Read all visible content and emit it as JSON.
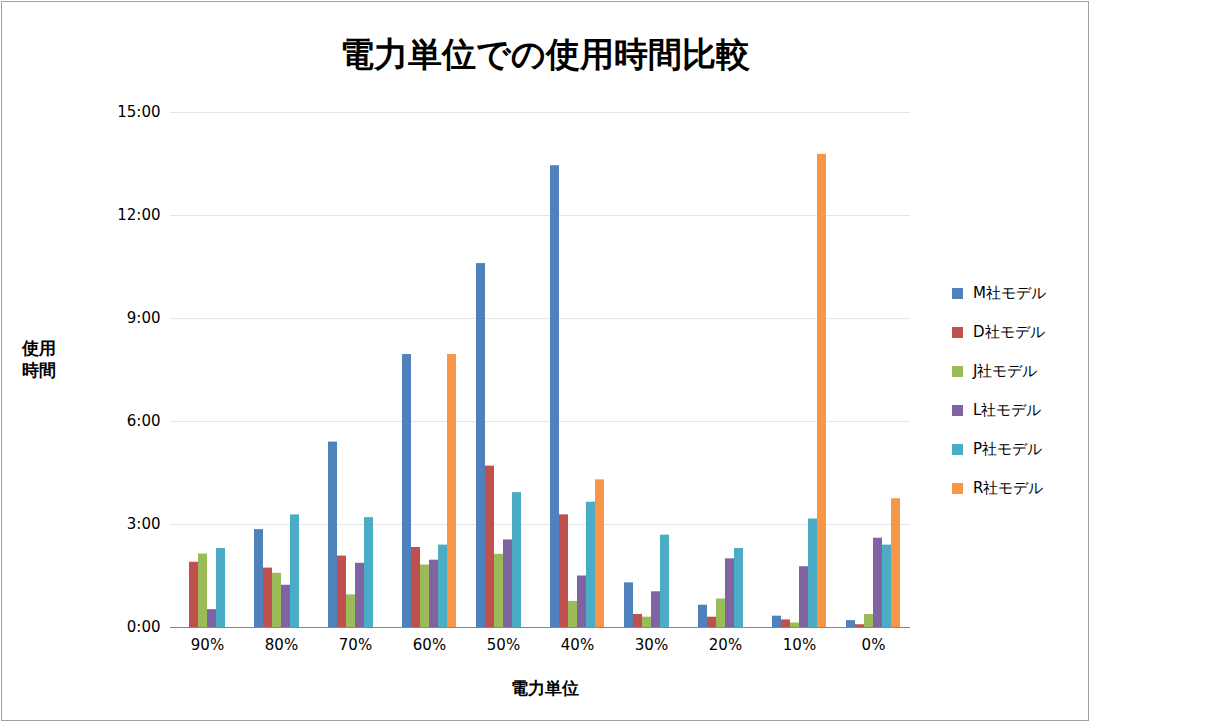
{
  "chart_data": {
    "type": "bar",
    "title": "電力単位での使用時間比較",
    "x_label": "電力単位",
    "y_label": "使用\n時間",
    "categories": [
      "90%",
      "80%",
      "70%",
      "60%",
      "50%",
      "40%",
      "30%",
      "20%",
      "10%",
      "0%"
    ],
    "series": [
      {
        "name": "M社モデル",
        "color": "#4F81BD",
        "values": [
          null,
          2.85,
          5.4,
          7.95,
          10.6,
          13.45,
          1.3,
          0.65,
          0.33,
          0.2
        ]
      },
      {
        "name": "D社モデル",
        "color": "#C0504D",
        "values": [
          1.9,
          1.73,
          2.08,
          2.33,
          4.7,
          3.28,
          0.38,
          0.3,
          0.22,
          0.08
        ]
      },
      {
        "name": "J社モデル",
        "color": "#9BBB59",
        "values": [
          2.14,
          1.58,
          0.95,
          1.82,
          2.13,
          0.76,
          0.3,
          0.83,
          0.13,
          0.38
        ]
      },
      {
        "name": "L社モデル",
        "color": "#8064A2",
        "values": [
          0.52,
          1.23,
          1.87,
          1.96,
          2.55,
          1.5,
          1.04,
          2.0,
          1.77,
          2.6
        ]
      },
      {
        "name": "P社モデル",
        "color": "#4BACC6",
        "values": [
          2.3,
          3.28,
          3.2,
          2.4,
          3.93,
          3.65,
          2.69,
          2.3,
          3.16,
          2.4
        ]
      },
      {
        "name": "R社モデル",
        "color": "#F79646",
        "values": [
          null,
          null,
          null,
          7.95,
          null,
          4.3,
          null,
          null,
          13.78,
          3.75
        ]
      }
    ],
    "ylim": [
      0,
      15
    ],
    "yticks": [
      {
        "value": 0,
        "label": "0:00"
      },
      {
        "value": 3,
        "label": "3:00"
      },
      {
        "value": 6,
        "label": "6:00"
      },
      {
        "value": 9,
        "label": "9:00"
      },
      {
        "value": 12,
        "label": "12:00"
      },
      {
        "value": 15,
        "label": "15:00"
      }
    ],
    "grid": true,
    "legend": "right"
  }
}
